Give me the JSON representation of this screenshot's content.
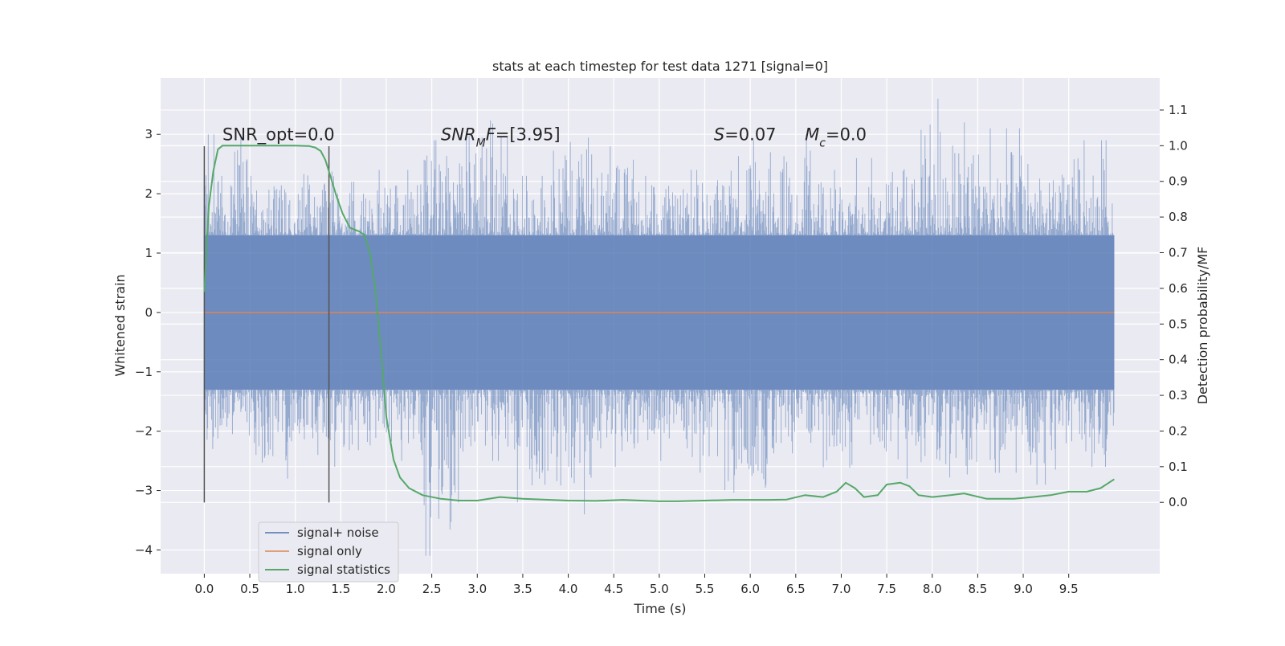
{
  "chart_data": {
    "type": "line",
    "title": "stats at each timestep for test data 1271 [signal=0]",
    "xlabel": "Time (s)",
    "ylabel_left": "Whitened strain",
    "ylabel_right": "Detection probability/MF",
    "xlim": [
      -0.48,
      10.5
    ],
    "ylim_left": [
      -4.4,
      3.95
    ],
    "ylim_right": [
      -0.2,
      1.19
    ],
    "x_ticks": [
      0.0,
      0.5,
      1.0,
      1.5,
      2.0,
      2.5,
      3.0,
      3.5,
      4.0,
      4.5,
      5.0,
      5.5,
      6.0,
      6.5,
      7.0,
      7.5,
      8.0,
      8.5,
      9.0,
      9.5
    ],
    "x_tick_labels": [
      "0.0",
      "0.5",
      "1.0",
      "1.5",
      "2.0",
      "2.5",
      "3.0",
      "3.5",
      "4.0",
      "4.5",
      "5.0",
      "5.5",
      "6.0",
      "6.5",
      "7.0",
      "7.5",
      "8.0",
      "8.5",
      "9.0",
      "9.5"
    ],
    "y_left_ticks": [
      -4,
      -3,
      -2,
      -1,
      0,
      1,
      2,
      3
    ],
    "y_left_tick_labels": [
      "−4",
      "−3",
      "−2",
      "−1",
      "0",
      "1",
      "2",
      "3"
    ],
    "y_right_ticks": [
      0.0,
      0.1,
      0.2,
      0.3,
      0.4,
      0.5,
      0.6,
      0.7,
      0.8,
      0.9,
      1.0,
      1.1
    ],
    "y_right_tick_labels": [
      "0.0",
      "0.1",
      "0.2",
      "0.3",
      "0.4",
      "0.5",
      "0.6",
      "0.7",
      "0.8",
      "0.9",
      "1.0",
      "1.1"
    ],
    "grid": true,
    "legend_position": "lower-left",
    "colors": {
      "background": "#eaeaf2",
      "grid": "#ffffff",
      "noise": "#4c72b0",
      "signal": "#dd8452",
      "statistics": "#55a868",
      "vline": "#555555"
    },
    "annotations": [
      {
        "segments": [
          {
            "text": "SNR_opt=0.0",
            "style": "normal"
          }
        ],
        "x": 0.2
      },
      {
        "segments": [
          {
            "text": "SNR",
            "style": "italic"
          },
          {
            "text": "M",
            "style": "italic-sub"
          },
          {
            "text": "F",
            "style": "italic"
          },
          {
            "text": "=[3.95]",
            "style": "normal"
          }
        ],
        "x": 2.6
      },
      {
        "segments": [
          {
            "text": "S",
            "style": "italic"
          },
          {
            "text": "=0.07",
            "style": "normal"
          }
        ],
        "x": 5.6
      },
      {
        "segments": [
          {
            "text": "M",
            "style": "italic"
          },
          {
            "text": "c",
            "style": "italic-sub"
          },
          {
            "text": "=0.0",
            "style": "normal"
          }
        ],
        "x": 6.6
      }
    ],
    "annotation_y": 2.9,
    "vertical_lines": [
      {
        "x": 0.0,
        "y_range": [
          -3.2,
          2.8
        ]
      },
      {
        "x": 1.37,
        "y_range": [
          -3.2,
          2.8
        ]
      }
    ],
    "noise_envelope": {
      "x_range": [
        0.0,
        10.0
      ],
      "band": [
        -1.3,
        1.3
      ],
      "peak_max": [
        3.0,
        2.3,
        2.6,
        2.2,
        2.4,
        2.9,
        3.6,
        2.3,
        3.3,
        2.8,
        2.3,
        2.4,
        2.9,
        3.0,
        2.4,
        2.6,
        3.6,
        3.2,
        3.1,
        2.5,
        2.9
      ],
      "trough_min": [
        -2.3,
        -2.8,
        -2.4,
        -2.6,
        -2.5,
        -4.1,
        -2.5,
        -3.2,
        -3.4,
        -2.6,
        -2.5,
        -2.7,
        -3.4,
        -2.6,
        -2.9,
        -2.7,
        -2.8,
        -3.1,
        -2.7,
        -2.9,
        -2.6
      ]
    },
    "series": [
      {
        "name": "signal+ noise",
        "axis": "left",
        "style": "dense-noise"
      },
      {
        "name": "signal only",
        "axis": "left",
        "x": [
          0.0,
          10.0
        ],
        "y": [
          0.0,
          0.0
        ]
      },
      {
        "name": "signal statistics",
        "axis": "right",
        "x": [
          0.0,
          0.05,
          0.1,
          0.15,
          0.2,
          0.3,
          0.5,
          0.8,
          1.0,
          1.15,
          1.22,
          1.28,
          1.33,
          1.38,
          1.45,
          1.52,
          1.6,
          1.7,
          1.76,
          1.82,
          1.88,
          1.95,
          2.0,
          2.08,
          2.15,
          2.25,
          2.4,
          2.6,
          2.8,
          3.0,
          3.25,
          3.5,
          4.0,
          4.3,
          4.6,
          5.0,
          5.2,
          5.5,
          5.8,
          6.0,
          6.2,
          6.4,
          6.6,
          6.8,
          6.95,
          7.05,
          7.15,
          7.25,
          7.4,
          7.5,
          7.65,
          7.75,
          7.85,
          8.0,
          8.2,
          8.35,
          8.6,
          8.9,
          9.1,
          9.3,
          9.5,
          9.7,
          9.85,
          10.0
        ],
        "y": [
          0.59,
          0.83,
          0.93,
          0.99,
          1.0,
          1.0,
          1.0,
          1.0,
          1.0,
          0.999,
          0.995,
          0.985,
          0.96,
          0.92,
          0.86,
          0.81,
          0.77,
          0.76,
          0.75,
          0.7,
          0.6,
          0.4,
          0.24,
          0.12,
          0.07,
          0.04,
          0.02,
          0.01,
          0.005,
          0.005,
          0.015,
          0.01,
          0.005,
          0.004,
          0.007,
          0.003,
          0.003,
          0.005,
          0.007,
          0.007,
          0.007,
          0.008,
          0.02,
          0.015,
          0.03,
          0.055,
          0.04,
          0.015,
          0.02,
          0.05,
          0.055,
          0.045,
          0.02,
          0.015,
          0.02,
          0.025,
          0.01,
          0.01,
          0.015,
          0.02,
          0.03,
          0.03,
          0.04,
          0.065
        ]
      }
    ]
  }
}
